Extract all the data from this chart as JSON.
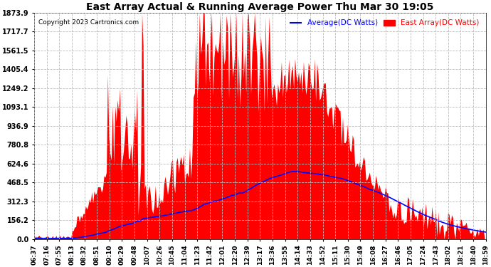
{
  "title": "East Array Actual & Running Average Power Thu Mar 30 19:05",
  "copyright": "Copyright 2023 Cartronics.com",
  "legend_average": "Average(DC Watts)",
  "legend_east": "East Array(DC Watts)",
  "yticks": [
    0.0,
    156.2,
    312.3,
    468.5,
    624.6,
    780.8,
    936.9,
    1093.1,
    1249.2,
    1405.4,
    1561.5,
    1717.7,
    1873.9
  ],
  "ymax": 1873.9,
  "xtick_labels": [
    "06:37",
    "07:16",
    "07:55",
    "08:13",
    "08:32",
    "08:51",
    "09:10",
    "09:29",
    "09:48",
    "10:07",
    "10:26",
    "10:45",
    "11:04",
    "11:23",
    "11:42",
    "12:01",
    "12:20",
    "12:39",
    "13:17",
    "13:36",
    "13:55",
    "14:14",
    "14:33",
    "14:52",
    "15:11",
    "15:30",
    "15:49",
    "16:08",
    "16:27",
    "16:46",
    "17:05",
    "17:24",
    "17:43",
    "18:02",
    "18:21",
    "18:40",
    "18:59"
  ],
  "background_color": "#ffffff",
  "plot_bg_color": "#ffffff",
  "grid_color": "#bbbbbb",
  "area_color": "#ff0000",
  "line_color": "#0000ff",
  "title_color": "#000000",
  "copyright_color": "#000000",
  "legend_avg_color": "#0000ff",
  "legend_east_color": "#ff0000"
}
